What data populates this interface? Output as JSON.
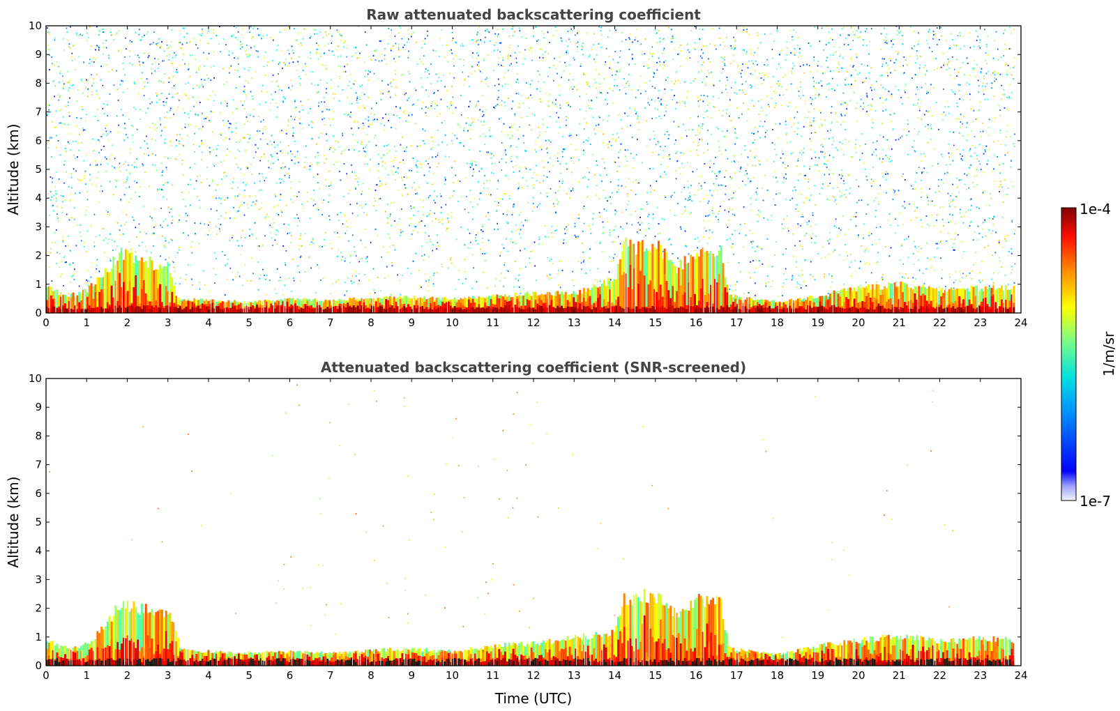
{
  "chart_data": [
    {
      "type": "heatmap",
      "title": "Raw attenuated backscattering coefficient",
      "xlabel": "",
      "ylabel": "Altitude (km)",
      "xlim": [
        0,
        24
      ],
      "ylim": [
        0,
        10
      ],
      "xticks": [
        "0",
        "1",
        "2",
        "3",
        "4",
        "5",
        "6",
        "7",
        "8",
        "9",
        "10",
        "11",
        "12",
        "13",
        "14",
        "15",
        "16",
        "17",
        "18",
        "19",
        "20",
        "21",
        "22",
        "23",
        "24"
      ],
      "yticks": [
        "0",
        "1",
        "2",
        "3",
        "4",
        "5",
        "6",
        "7",
        "8",
        "9",
        "10"
      ],
      "data_end_hour": 23.85,
      "boundary_layer_top_km": [
        [
          0,
          0.9
        ],
        [
          0.5,
          0.6
        ],
        [
          1,
          0.8
        ],
        [
          1.5,
          1.6
        ],
        [
          1.8,
          2.1
        ],
        [
          2.2,
          2.0
        ],
        [
          2.7,
          1.7
        ],
        [
          3.0,
          1.8
        ],
        [
          3.2,
          0.5
        ],
        [
          4,
          0.45
        ],
        [
          5,
          0.4
        ],
        [
          6,
          0.5
        ],
        [
          7,
          0.45
        ],
        [
          8,
          0.55
        ],
        [
          9,
          0.55
        ],
        [
          10,
          0.5
        ],
        [
          11,
          0.6
        ],
        [
          12,
          0.7
        ],
        [
          13,
          0.7
        ],
        [
          14,
          1.2
        ],
        [
          14.2,
          2.4
        ],
        [
          15,
          2.4
        ],
        [
          15.5,
          1.6
        ],
        [
          16,
          2.2
        ],
        [
          16.6,
          2.2
        ],
        [
          16.8,
          0.6
        ],
        [
          18,
          0.4
        ],
        [
          19,
          0.6
        ],
        [
          20,
          0.9
        ],
        [
          21,
          1.0
        ],
        [
          22,
          0.8
        ],
        [
          23,
          0.9
        ],
        [
          23.85,
          0.9
        ]
      ],
      "noise_top_km": 10
    },
    {
      "type": "heatmap",
      "title": "Attenuated backscattering coefficient (SNR-screened)",
      "xlabel": "Time (UTC)",
      "ylabel": "Altitude (km)",
      "xlim": [
        0,
        24
      ],
      "ylim": [
        0,
        10
      ],
      "xticks": [
        "0",
        "1",
        "2",
        "3",
        "4",
        "5",
        "6",
        "7",
        "8",
        "9",
        "10",
        "11",
        "12",
        "13",
        "14",
        "15",
        "16",
        "17",
        "18",
        "19",
        "20",
        "21",
        "22",
        "23",
        "24"
      ],
      "yticks": [
        "0",
        "1",
        "2",
        "3",
        "4",
        "5",
        "6",
        "7",
        "8",
        "9",
        "10"
      ],
      "data_end_hour": 23.85,
      "boundary_layer_top_km": [
        [
          0,
          0.9
        ],
        [
          0.5,
          0.6
        ],
        [
          1,
          0.8
        ],
        [
          1.5,
          1.5
        ],
        [
          1.8,
          2.2
        ],
        [
          2.2,
          2.1
        ],
        [
          2.7,
          1.8
        ],
        [
          3.0,
          2.0
        ],
        [
          3.3,
          0.6
        ],
        [
          4,
          0.5
        ],
        [
          5,
          0.45
        ],
        [
          6,
          0.5
        ],
        [
          7,
          0.45
        ],
        [
          8,
          0.55
        ],
        [
          9,
          0.6
        ],
        [
          10,
          0.5
        ],
        [
          11,
          0.7
        ],
        [
          12,
          0.8
        ],
        [
          13,
          1.0
        ],
        [
          14,
          1.2
        ],
        [
          14.2,
          2.4
        ],
        [
          15,
          2.5
        ],
        [
          15.5,
          1.8
        ],
        [
          16,
          2.3
        ],
        [
          16.6,
          2.2
        ],
        [
          16.8,
          0.6
        ],
        [
          18,
          0.4
        ],
        [
          19,
          0.7
        ],
        [
          20,
          0.9
        ],
        [
          21,
          1.05
        ],
        [
          22,
          0.85
        ],
        [
          23,
          0.95
        ],
        [
          23.85,
          0.9
        ]
      ]
    }
  ],
  "colorbar": {
    "label": "1/m/sr",
    "max_label": "1e-4",
    "min_label": "1e-7",
    "colormap": "jet"
  }
}
